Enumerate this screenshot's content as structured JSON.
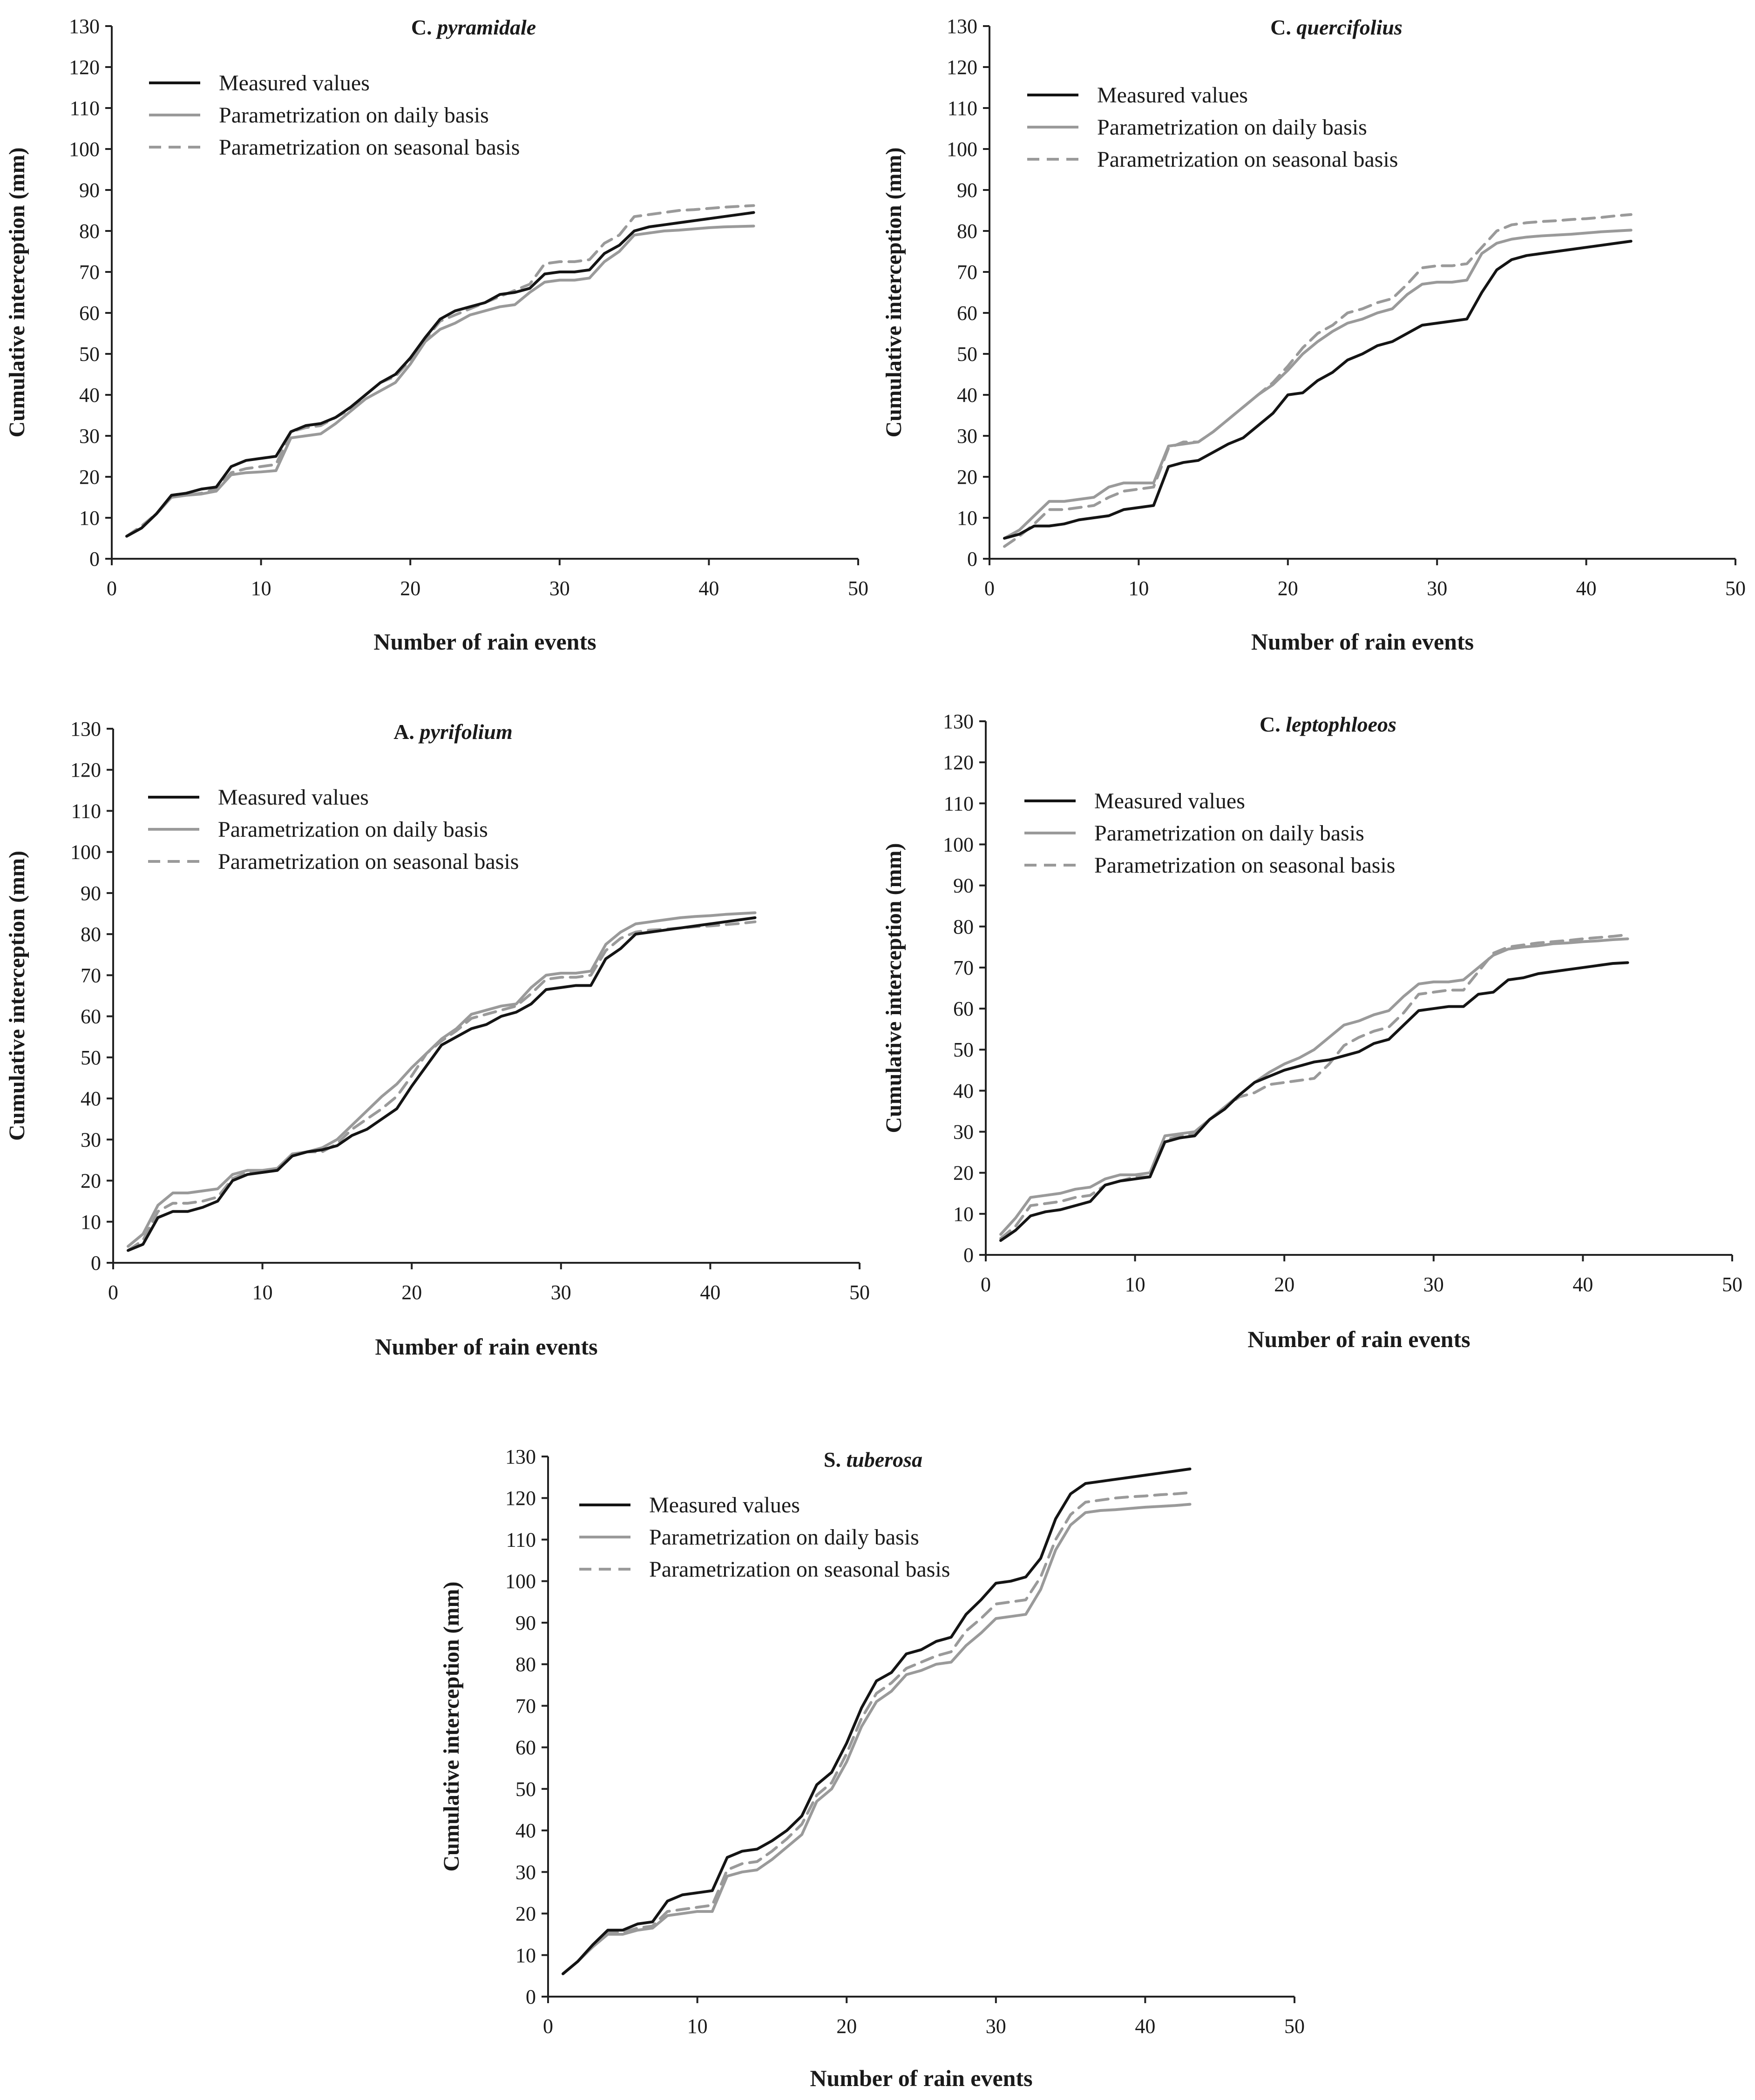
{
  "colors": {
    "measured": "#141414",
    "daily": "#9a9a9a",
    "seasonal": "#9a9a9a",
    "axis": "#222222"
  },
  "chart_data": [
    {
      "type": "line",
      "title_prefix": "C. ",
      "title_italic": "pyramidale",
      "xlabel": "Number of rain events",
      "ylabel": "Cumulative interception (mm)",
      "xlim": [
        0,
        50
      ],
      "ylim": [
        0,
        130
      ],
      "x_ticks": [
        "0",
        "10",
        "20",
        "30",
        "40",
        "50"
      ],
      "y_ticks": [
        "0",
        "10",
        "20",
        "30",
        "40",
        "50",
        "60",
        "70",
        "80",
        "90",
        "100",
        "110",
        "120",
        "130"
      ],
      "legend": [
        "Measured values",
        "Parametrization on daily basis",
        "Parametrization on seasonal basis"
      ],
      "x": [
        1,
        2,
        3,
        4,
        5,
        6,
        7,
        8,
        9,
        10,
        11,
        12,
        13,
        14,
        15,
        16,
        17,
        18,
        19,
        20,
        21,
        22,
        23,
        24,
        25,
        26,
        27,
        28,
        29,
        30,
        31,
        32,
        33,
        34,
        35,
        36,
        37,
        38,
        39,
        40,
        41,
        42,
        43
      ],
      "series": [
        {
          "name": "Measured values",
          "values": [
            5.5,
            7.5,
            11,
            15.5,
            16,
            17,
            17.5,
            22.5,
            24,
            24.5,
            25,
            31,
            32.5,
            33,
            34.5,
            37,
            40,
            43,
            45,
            49,
            54,
            58.5,
            60.5,
            61.5,
            62.5,
            64.5,
            65,
            66,
            69.5,
            70,
            70,
            70.5,
            74.5,
            76.5,
            80,
            81,
            81.5,
            82,
            82.5,
            83,
            83.5,
            84,
            84.5
          ]
        },
        {
          "name": "Parametrization on daily basis",
          "values": [
            5.5,
            7.5,
            11,
            15,
            15.5,
            15.8,
            16.5,
            20.5,
            21,
            21.2,
            21.5,
            29.5,
            30,
            30.5,
            33,
            36,
            39,
            41,
            43,
            47.5,
            53,
            56,
            57.5,
            59.5,
            60.5,
            61.5,
            62,
            65,
            67.5,
            68,
            68,
            68.5,
            72.5,
            75,
            79,
            79.5,
            80,
            80.2,
            80.5,
            80.8,
            81,
            81.1,
            81.2
          ]
        },
        {
          "name": "Parametrization on seasonal basis",
          "values": [
            5.5,
            8,
            11,
            15,
            15.5,
            16,
            17,
            21,
            22,
            22.5,
            23,
            31,
            32,
            32.5,
            34.5,
            36.5,
            40,
            43,
            44.5,
            48.5,
            53.5,
            58,
            59.5,
            61,
            62.5,
            64,
            65.5,
            67,
            72,
            72.5,
            72.5,
            73,
            77,
            79,
            83.5,
            84,
            84.5,
            85,
            85.2,
            85.5,
            85.8,
            86,
            86.2
          ]
        }
      ]
    },
    {
      "type": "line",
      "title_prefix": "C. ",
      "title_italic": "quercifolius",
      "xlabel": "Number of rain events",
      "ylabel": "Cumulative interception (mm)",
      "xlim": [
        0,
        50
      ],
      "ylim": [
        0,
        130
      ],
      "x_ticks": [
        "0",
        "10",
        "20",
        "30",
        "40",
        "50"
      ],
      "y_ticks": [
        "0",
        "10",
        "20",
        "30",
        "40",
        "50",
        "60",
        "70",
        "80",
        "90",
        "100",
        "110",
        "120",
        "130"
      ],
      "legend": [
        "Measured values",
        "Parametrization on daily basis",
        "Parametrization on seasonal basis"
      ],
      "x": [
        1,
        2,
        3,
        4,
        5,
        6,
        7,
        8,
        9,
        10,
        11,
        12,
        13,
        14,
        15,
        16,
        17,
        18,
        19,
        20,
        21,
        22,
        23,
        24,
        25,
        26,
        27,
        28,
        29,
        30,
        31,
        32,
        33,
        34,
        35,
        36,
        37,
        38,
        39,
        40,
        41,
        42,
        43
      ],
      "series": [
        {
          "name": "Measured values",
          "values": [
            5,
            6,
            8,
            8,
            8.5,
            9.5,
            10,
            10.5,
            12,
            12.5,
            13,
            22.5,
            23.5,
            24,
            26,
            28,
            29.5,
            32.5,
            35.5,
            40,
            40.5,
            43.5,
            45.5,
            48.5,
            50,
            52,
            53,
            55,
            57,
            57.5,
            58,
            58.5,
            65,
            70.5,
            73,
            74,
            74.5,
            75,
            75.5,
            76,
            76.5,
            77,
            77.5
          ]
        },
        {
          "name": "Parametrization on daily basis",
          "values": [
            5,
            7,
            10.5,
            14,
            14,
            14.5,
            15,
            17.5,
            18.5,
            18.5,
            18.5,
            27.5,
            28,
            28.5,
            31,
            34,
            37,
            40,
            42.5,
            46,
            50,
            53,
            55.5,
            57.5,
            58.5,
            60,
            61,
            64.5,
            67,
            67.5,
            67.5,
            68,
            74.5,
            77,
            78,
            78.5,
            78.8,
            79,
            79.2,
            79.5,
            79.8,
            80,
            80.2
          ]
        },
        {
          "name": "Parametrization on seasonal basis",
          "values": [
            3,
            5.5,
            8.5,
            12,
            12,
            12.5,
            13,
            15,
            16.5,
            17,
            17.5,
            27,
            28.5,
            28.5,
            31,
            34,
            37,
            40,
            43,
            47,
            51.5,
            55,
            57,
            60,
            61,
            62.5,
            63.5,
            67,
            71,
            71.5,
            71.5,
            72,
            76,
            80,
            81.5,
            82,
            82.3,
            82.5,
            82.8,
            83,
            83.3,
            83.7,
            84
          ]
        }
      ]
    },
    {
      "type": "line",
      "title_prefix": "A. ",
      "title_italic": "pyrifolium",
      "xlabel": "Number of rain events",
      "ylabel": "Cumulative interception (mm)",
      "xlim": [
        0,
        50
      ],
      "ylim": [
        0,
        130
      ],
      "x_ticks": [
        "0",
        "10",
        "20",
        "30",
        "40",
        "50"
      ],
      "y_ticks": [
        "0",
        "10",
        "20",
        "30",
        "40",
        "50",
        "60",
        "70",
        "80",
        "90",
        "100",
        "110",
        "120",
        "130"
      ],
      "legend": [
        "Measured values",
        "Parametrization on daily basis",
        "Parametrization on seasonal basis"
      ],
      "x": [
        1,
        2,
        3,
        4,
        5,
        6,
        7,
        8,
        9,
        10,
        11,
        12,
        13,
        14,
        15,
        16,
        17,
        18,
        19,
        20,
        21,
        22,
        23,
        24,
        25,
        26,
        27,
        28,
        29,
        30,
        31,
        32,
        33,
        34,
        35,
        36,
        37,
        38,
        39,
        40,
        41,
        42,
        43
      ],
      "series": [
        {
          "name": "Measured values",
          "values": [
            3,
            4.5,
            11,
            12.5,
            12.5,
            13.5,
            15,
            20,
            21.5,
            22,
            22.5,
            26,
            27,
            27.5,
            28.5,
            31,
            32.5,
            35,
            37.5,
            43,
            48,
            53,
            55,
            57,
            58,
            60,
            61,
            63,
            66.5,
            67,
            67.5,
            67.5,
            74,
            76.5,
            80,
            80.5,
            81,
            81.5,
            82,
            82.5,
            83,
            83.5,
            84
          ]
        },
        {
          "name": "Parametrization on daily basis",
          "values": [
            4,
            7,
            14,
            17,
            17,
            17.5,
            18,
            21.5,
            22.5,
            22.5,
            23,
            26.5,
            27,
            28,
            30,
            33.5,
            37,
            40.5,
            43.5,
            47.5,
            51,
            54.5,
            57,
            60.5,
            61.5,
            62.5,
            63,
            67,
            70,
            70.5,
            70.5,
            71,
            77.5,
            80.5,
            82.5,
            83,
            83.5,
            84,
            84.3,
            84.5,
            84.8,
            85,
            85.2
          ]
        },
        {
          "name": "Parametrization on seasonal basis",
          "values": [
            3,
            5.5,
            12.5,
            14.5,
            14.5,
            15,
            16,
            20.5,
            22,
            22,
            22.5,
            26,
            27,
            27,
            29,
            32.5,
            35,
            37.5,
            40.5,
            45.5,
            51,
            54,
            56.5,
            59.5,
            60.5,
            61.5,
            62.5,
            65.5,
            69,
            69.5,
            69.5,
            70,
            76,
            79,
            80.5,
            81,
            81.2,
            81.5,
            81.8,
            82,
            82.3,
            82.6,
            83
          ]
        }
      ]
    },
    {
      "type": "line",
      "title_prefix": "C. ",
      "title_italic": "leptophloeos",
      "xlabel": "Number of rain events",
      "ylabel": "Cumulative interception (mm)",
      "xlim": [
        0,
        50
      ],
      "ylim": [
        0,
        130
      ],
      "x_ticks": [
        "0",
        "10",
        "20",
        "30",
        "40",
        "50"
      ],
      "y_ticks": [
        "0",
        "10",
        "20",
        "30",
        "40",
        "50",
        "60",
        "70",
        "80",
        "90",
        "100",
        "110",
        "120",
        "130"
      ],
      "legend": [
        "Measured values",
        "Parametrization on daily basis",
        "Parametrization on seasonal basis"
      ],
      "x": [
        1,
        2,
        3,
        4,
        5,
        6,
        7,
        8,
        9,
        10,
        11,
        12,
        13,
        14,
        15,
        16,
        17,
        18,
        19,
        20,
        21,
        22,
        23,
        24,
        25,
        26,
        27,
        28,
        29,
        30,
        31,
        32,
        33,
        34,
        35,
        36,
        37,
        38,
        39,
        40,
        41,
        42,
        43
      ],
      "series": [
        {
          "name": "Measured values",
          "values": [
            3.5,
            6,
            9.5,
            10.5,
            11,
            12,
            13,
            17,
            18,
            18.5,
            19,
            27.5,
            28.5,
            29,
            33,
            35.5,
            39,
            42,
            43.5,
            45,
            46,
            47,
            47.5,
            48.5,
            49.5,
            51.5,
            52.5,
            56,
            59.5,
            60,
            60.5,
            60.5,
            63.5,
            64,
            67,
            67.5,
            68.5,
            69,
            69.5,
            70,
            70.5,
            71,
            71.2
          ]
        },
        {
          "name": "Parametrization on daily basis",
          "values": [
            5,
            9,
            14,
            14.5,
            15,
            16,
            16.5,
            18.5,
            19.5,
            19.5,
            20,
            29,
            29.5,
            30,
            33,
            36,
            39,
            42,
            44.5,
            46.5,
            48,
            50,
            53,
            56,
            57,
            58.5,
            59.5,
            63,
            66,
            66.5,
            66.5,
            67,
            70,
            73,
            74.5,
            75,
            75.3,
            75.8,
            76,
            76.3,
            76.5,
            76.8,
            77
          ]
        },
        {
          "name": "Parametrization on seasonal basis",
          "values": [
            4,
            7,
            12,
            12.5,
            13,
            14,
            14.5,
            17,
            18,
            19,
            19,
            28,
            29,
            29.5,
            33,
            36,
            38.5,
            39.5,
            41.5,
            42,
            42.5,
            43,
            46.5,
            51,
            53,
            54.5,
            55.5,
            59,
            63.5,
            64,
            64.5,
            64.5,
            69,
            73.5,
            75,
            75.5,
            76,
            76.3,
            76.6,
            77,
            77.3,
            77.6,
            78
          ]
        }
      ]
    },
    {
      "type": "line",
      "title_prefix": "S. ",
      "title_italic": "tuberosa",
      "xlabel": "Number of rain events",
      "ylabel": "Cumulative interception (mm)",
      "xlim": [
        0,
        50
      ],
      "ylim": [
        0,
        130
      ],
      "x_ticks": [
        "0",
        "10",
        "20",
        "30",
        "40",
        "50"
      ],
      "y_ticks": [
        "0",
        "10",
        "20",
        "30",
        "40",
        "50",
        "60",
        "70",
        "80",
        "90",
        "100",
        "110",
        "120",
        "130"
      ],
      "legend": [
        "Measured values",
        "Parametrization on daily basis",
        "Parametrization on seasonal basis"
      ],
      "x": [
        1,
        2,
        3,
        4,
        5,
        6,
        7,
        8,
        9,
        10,
        11,
        12,
        13,
        14,
        15,
        16,
        17,
        18,
        19,
        20,
        21,
        22,
        23,
        24,
        25,
        26,
        27,
        28,
        29,
        30,
        31,
        32,
        33,
        34,
        35,
        36,
        37,
        38,
        39,
        40,
        41,
        42,
        43
      ],
      "series": [
        {
          "name": "Measured values",
          "values": [
            5.5,
            8.5,
            12.5,
            16,
            16,
            17.5,
            18,
            23,
            24.5,
            25,
            25.5,
            33.5,
            35,
            35.5,
            37.5,
            40,
            43.5,
            51,
            54,
            61,
            69.5,
            76,
            78,
            82.5,
            83.5,
            85.5,
            86.5,
            92,
            95.5,
            99.5,
            100,
            101,
            105.5,
            115,
            121,
            123.5,
            124,
            124.5,
            125,
            125.5,
            126,
            126.5,
            127
          ]
        },
        {
          "name": "Parametrization on daily basis",
          "values": [
            5.5,
            8.5,
            12,
            15,
            15,
            16,
            16.5,
            19.5,
            20,
            20.5,
            20.5,
            29,
            30,
            30.5,
            33,
            36,
            39,
            47,
            50,
            56.5,
            65,
            71,
            73.5,
            77.5,
            78.5,
            80,
            80.5,
            84.5,
            87.5,
            91,
            91.5,
            92,
            98,
            107.5,
            113.5,
            116.5,
            117,
            117.2,
            117.5,
            117.8,
            118,
            118.2,
            118.5
          ]
        },
        {
          "name": "Parametrization on seasonal basis",
          "values": [
            5.5,
            8.5,
            12,
            15.5,
            15.5,
            16.5,
            17,
            20.5,
            21,
            21.5,
            22,
            30.5,
            32,
            32.5,
            35,
            38,
            41.5,
            48.5,
            51.5,
            58.5,
            67,
            73,
            75.5,
            79,
            80.5,
            82,
            83,
            88,
            91,
            94.5,
            95,
            95.5,
            101,
            110,
            116,
            119,
            119.5,
            120,
            120.3,
            120.5,
            120.8,
            121,
            121.3
          ]
        }
      ]
    }
  ]
}
